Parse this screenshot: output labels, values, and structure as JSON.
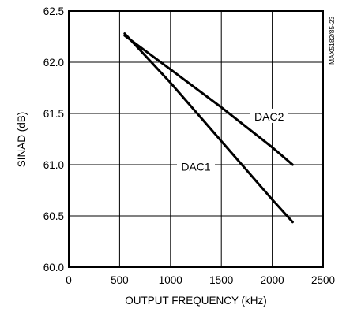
{
  "chart_data": {
    "type": "line",
    "xlabel": "OUTPUT FREQUENCY (kHz)",
    "ylabel": "SINAD (dB)",
    "xlim": [
      0,
      2500
    ],
    "ylim": [
      60.0,
      62.5
    ],
    "x_ticks": [
      "0",
      "500",
      "1000",
      "1500",
      "2000",
      "2500"
    ],
    "y_ticks": [
      "60.0",
      "60.5",
      "61.0",
      "61.5",
      "62.0",
      "62.5"
    ],
    "grid": true,
    "reference_code": "MAX5182/85-23",
    "series": [
      {
        "name": "DAC1",
        "x": [
          550,
          1000,
          1500,
          2000,
          2200
        ],
        "y": [
          62.28,
          61.8,
          61.23,
          60.66,
          60.44
        ]
      },
      {
        "name": "DAC2",
        "x": [
          550,
          1000,
          1500,
          2000,
          2200
        ],
        "y": [
          62.26,
          61.93,
          61.56,
          61.17,
          61.0
        ]
      }
    ]
  }
}
